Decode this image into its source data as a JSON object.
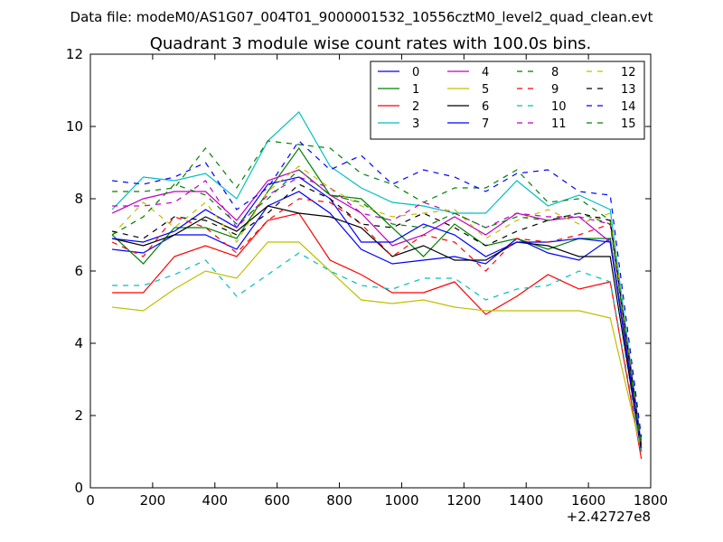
{
  "header": {
    "data_file": "Data file: modeM0/AS1G07_004T01_9000001532_10556cztM0_level2_quad_clean.evt"
  },
  "chart_data": {
    "type": "line",
    "title": "Quadrant 3 module wise count rates with 100.0s bins.",
    "xlabel": "",
    "ylabel": "",
    "xlim": [
      0,
      1800
    ],
    "ylim": [
      0,
      12
    ],
    "x_offset_label": "+2.42727e8",
    "xticks": [
      0,
      200,
      400,
      600,
      800,
      1000,
      1200,
      1400,
      1600,
      1800
    ],
    "yticks": [
      0,
      2,
      4,
      6,
      8,
      10,
      12
    ],
    "grid": false,
    "legend": {
      "placement": "top-right",
      "columns": 4
    },
    "x": [
      70,
      170,
      270,
      370,
      470,
      570,
      670,
      770,
      870,
      970,
      1070,
      1170,
      1270,
      1370,
      1470,
      1570,
      1670,
      1770
    ],
    "series": [
      {
        "name": "0",
        "color": "#0000ff",
        "dash": "solid",
        "values": [
          6.6,
          6.5,
          7.0,
          7.0,
          6.6,
          7.8,
          8.2,
          7.6,
          6.6,
          6.2,
          6.3,
          6.4,
          6.2,
          6.9,
          6.5,
          6.3,
          6.9,
          1.1
        ]
      },
      {
        "name": "1",
        "color": "#008000",
        "dash": "solid",
        "values": [
          7.0,
          6.2,
          7.2,
          7.2,
          6.9,
          8.2,
          9.4,
          8.1,
          8.0,
          7.2,
          6.4,
          7.3,
          6.7,
          6.9,
          6.6,
          6.9,
          6.9,
          1.0
        ]
      },
      {
        "name": "2",
        "color": "#ff0000",
        "dash": "solid",
        "values": [
          5.4,
          5.4,
          6.4,
          6.7,
          6.4,
          7.4,
          7.6,
          6.3,
          5.9,
          5.4,
          5.4,
          5.7,
          4.8,
          5.3,
          5.9,
          5.5,
          5.7,
          0.8
        ]
      },
      {
        "name": "3",
        "color": "#00bfbf",
        "dash": "solid",
        "values": [
          7.7,
          8.6,
          8.5,
          8.7,
          8.0,
          9.6,
          10.4,
          8.9,
          8.3,
          7.9,
          7.8,
          7.6,
          7.6,
          8.5,
          7.8,
          8.1,
          7.7,
          1.2
        ]
      },
      {
        "name": "4",
        "color": "#bf00bf",
        "dash": "solid",
        "values": [
          7.6,
          8.0,
          8.2,
          8.2,
          7.4,
          8.5,
          8.8,
          8.1,
          7.6,
          6.7,
          7.0,
          7.5,
          7.0,
          7.6,
          7.4,
          7.5,
          6.8,
          1.1
        ]
      },
      {
        "name": "5",
        "color": "#bfbf00",
        "dash": "solid",
        "values": [
          5.0,
          4.9,
          5.5,
          6.0,
          5.8,
          6.8,
          6.8,
          6.0,
          5.2,
          5.1,
          5.2,
          5.0,
          4.9,
          4.9,
          4.9,
          4.9,
          4.7,
          1.0
        ]
      },
      {
        "name": "6",
        "color": "#000000",
        "dash": "solid",
        "values": [
          6.9,
          6.7,
          7.0,
          7.5,
          7.1,
          7.8,
          7.6,
          7.5,
          7.2,
          6.4,
          6.7,
          6.3,
          6.3,
          6.8,
          6.7,
          6.4,
          6.4,
          1.0
        ]
      },
      {
        "name": "7",
        "color": "#0000ff",
        "dash": "solid",
        "values": [
          6.9,
          6.8,
          7.1,
          7.7,
          7.2,
          8.4,
          8.6,
          8.0,
          6.8,
          6.8,
          7.3,
          7.0,
          6.4,
          6.8,
          6.8,
          6.9,
          6.8,
          1.0
        ]
      },
      {
        "name": "8",
        "color": "#008000",
        "dash": "dashed",
        "values": [
          8.2,
          8.2,
          8.3,
          9.4,
          8.3,
          9.6,
          9.5,
          9.4,
          8.7,
          8.4,
          7.9,
          8.3,
          8.3,
          8.8,
          7.9,
          8.0,
          7.4,
          1.3
        ]
      },
      {
        "name": "9",
        "color": "#ff0000",
        "dash": "dashed",
        "values": [
          6.8,
          6.4,
          7.5,
          7.2,
          6.5,
          7.4,
          8.0,
          7.9,
          7.3,
          6.4,
          7.0,
          6.8,
          6.0,
          6.9,
          6.8,
          7.0,
          7.3,
          1.1
        ]
      },
      {
        "name": "10",
        "color": "#00bfbf",
        "dash": "dashed",
        "values": [
          5.6,
          5.6,
          5.9,
          6.3,
          5.3,
          5.9,
          6.5,
          6.0,
          5.6,
          5.5,
          5.8,
          5.8,
          5.2,
          5.5,
          5.6,
          6.0,
          5.7,
          1.0
        ]
      },
      {
        "name": "11",
        "color": "#bf00bf",
        "dash": "dashed",
        "values": [
          7.8,
          7.8,
          7.9,
          8.5,
          7.2,
          8.1,
          8.6,
          8.3,
          7.6,
          7.4,
          7.9,
          7.6,
          7.2,
          7.6,
          7.5,
          7.5,
          7.3,
          1.2
        ]
      },
      {
        "name": "12",
        "color": "#bfbf00",
        "dash": "dashed",
        "values": [
          7.0,
          7.9,
          7.2,
          7.9,
          6.8,
          8.2,
          8.9,
          8.3,
          7.8,
          7.5,
          7.6,
          7.7,
          6.9,
          7.4,
          7.7,
          7.3,
          7.6,
          1.1
        ]
      },
      {
        "name": "13",
        "color": "#000000",
        "dash": "dashed",
        "values": [
          7.1,
          6.9,
          7.5,
          7.4,
          7.0,
          7.6,
          8.4,
          8.0,
          7.3,
          7.2,
          7.6,
          7.2,
          6.7,
          7.1,
          7.4,
          7.6,
          7.4,
          1.1
        ]
      },
      {
        "name": "14",
        "color": "#0000ff",
        "dash": "dashed",
        "values": [
          8.5,
          8.4,
          8.6,
          9.0,
          7.7,
          8.3,
          9.6,
          8.8,
          9.2,
          8.4,
          8.8,
          8.6,
          8.2,
          8.7,
          8.8,
          8.2,
          8.1,
          1.4
        ]
      },
      {
        "name": "15",
        "color": "#008000",
        "dash": "dashed",
        "values": [
          7.0,
          7.5,
          8.4,
          8.1,
          7.3,
          8.0,
          8.8,
          8.1,
          7.9,
          7.3,
          7.2,
          7.6,
          7.2,
          7.5,
          7.4,
          7.6,
          7.3,
          1.1
        ]
      }
    ]
  }
}
